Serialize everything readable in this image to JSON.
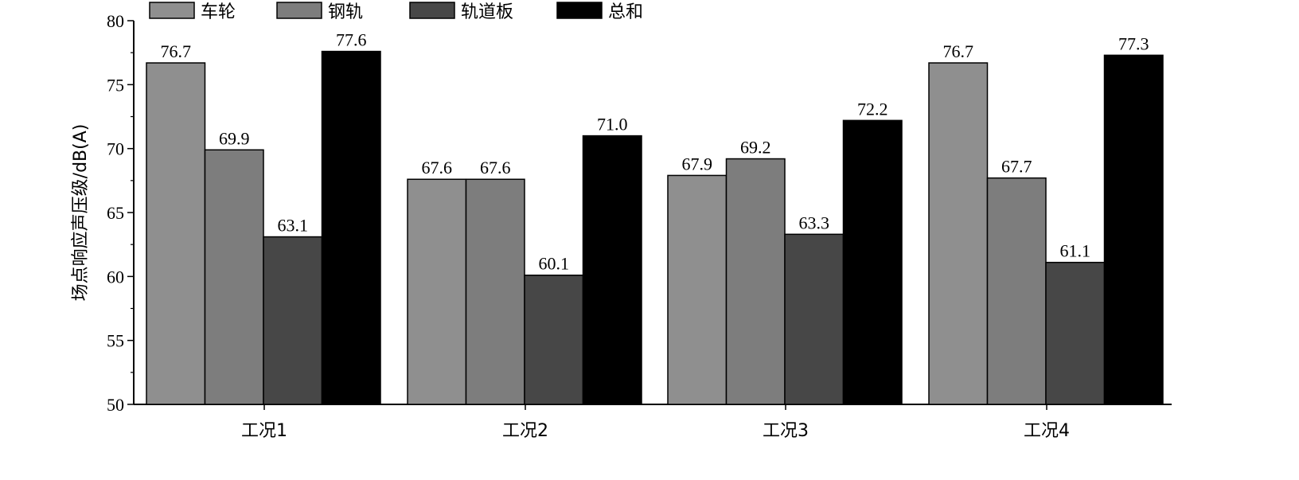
{
  "chart_data": {
    "type": "bar",
    "categories": [
      "工况1",
      "工况2",
      "工况3",
      "工况4"
    ],
    "series": [
      {
        "name": "车轮",
        "values": [
          76.7,
          67.6,
          67.9,
          76.7
        ],
        "color": "#8f8f8f"
      },
      {
        "name": "钢轨",
        "values": [
          69.9,
          67.6,
          69.2,
          67.7
        ],
        "color": "#7d7d7d"
      },
      {
        "name": "轨道板",
        "values": [
          63.1,
          60.1,
          63.3,
          61.1
        ],
        "color": "#474747"
      },
      {
        "name": "总和",
        "values": [
          77.6,
          71.0,
          72.2,
          77.3
        ],
        "color": "#000000"
      }
    ],
    "value_labels": [
      [
        "76.7",
        "69.9",
        "63.1",
        "77.6"
      ],
      [
        "67.6",
        "67.6",
        "60.1",
        "71.0"
      ],
      [
        "67.9",
        "69.2",
        "63.3",
        "72.2"
      ],
      [
        "76.7",
        "67.7",
        "61.1",
        "77.3"
      ]
    ],
    "ylabel": "场点响应声压级/dB(A)",
    "ylim": [
      50,
      80
    ],
    "yticks": [
      50,
      55,
      60,
      65,
      70,
      75,
      80
    ],
    "ytick_labels": [
      "50",
      "55",
      "60",
      "65",
      "70",
      "75",
      "80"
    ],
    "grid": false,
    "legend_position": "top"
  }
}
